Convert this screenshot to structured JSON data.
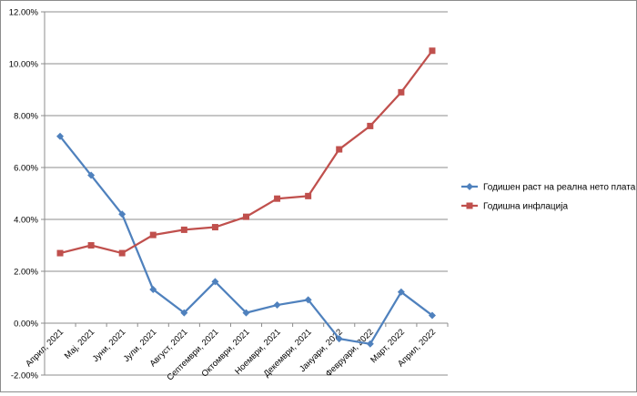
{
  "chart_data": {
    "type": "line",
    "categories": [
      "Април, 2021",
      "Мај, 2021",
      "Јуни, 2021",
      "Јули, 2021",
      "Август, 2021",
      "Септември, 2021",
      "Октомври, 2021",
      "Ноември, 2021",
      "Декември, 2021",
      "Јануари, 2022",
      "Февруари, 2022",
      "Март, 2022",
      "Април, 2022"
    ],
    "series": [
      {
        "name": "Годишен раст на реална нето плата",
        "color": "#4f81bd",
        "marker": "diamond",
        "values": [
          7.2,
          5.7,
          4.2,
          1.3,
          0.4,
          1.6,
          0.4,
          0.7,
          0.9,
          -0.6,
          -0.8,
          1.2,
          0.3
        ]
      },
      {
        "name": "Годишна инфлација",
        "color": "#c0504d",
        "marker": "square",
        "values": [
          2.7,
          3.0,
          2.7,
          3.4,
          3.6,
          3.7,
          4.1,
          4.8,
          4.9,
          6.7,
          7.6,
          8.9,
          10.5
        ]
      }
    ],
    "ylim": [
      -2,
      12
    ],
    "yticks": [
      "-2.00%",
      "0.00%",
      "2.00%",
      "4.00%",
      "6.00%",
      "8.00%",
      "10.00%",
      "12.00%"
    ],
    "yticks_values": [
      -2,
      0,
      2,
      4,
      6,
      8,
      10,
      12
    ],
    "grid": true,
    "legend": "right"
  }
}
